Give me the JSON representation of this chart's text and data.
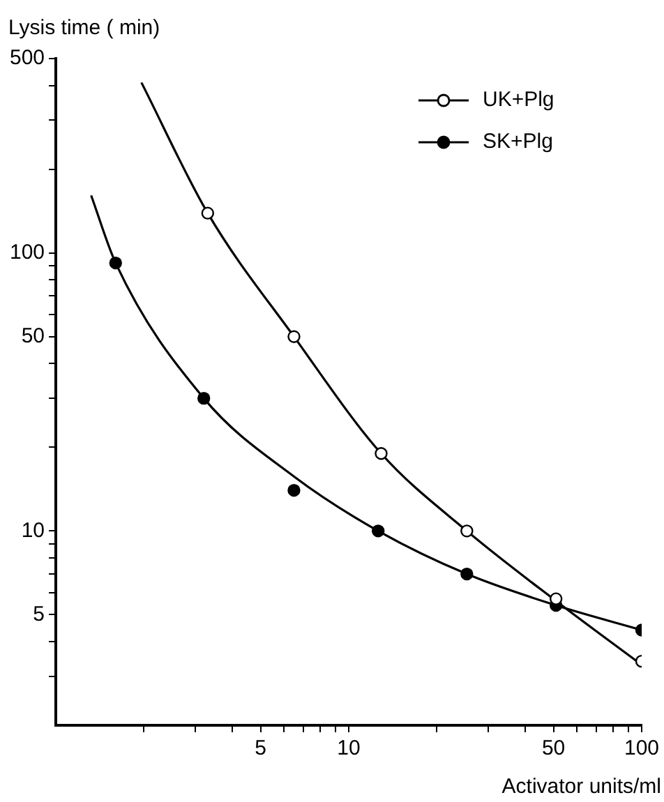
{
  "chart_data": {
    "type": "scatter",
    "ylabel": "Lysis time ( min)",
    "xlabel": "Activator units/ml",
    "log": "xy",
    "grid": false,
    "legend": "top right",
    "marker": "circle",
    "xlim": [
      1,
      100
    ],
    "ylim": [
      2,
      500
    ],
    "xticks": [
      {
        "value": 2,
        "label": null
      },
      {
        "value": 3,
        "label": null
      },
      {
        "value": 4,
        "label": null
      },
      5,
      {
        "value": 6,
        "label": null
      },
      {
        "value": 7,
        "label": null
      },
      {
        "value": 8,
        "label": null
      },
      {
        "value": 9,
        "label": null
      },
      10,
      {
        "value": 20,
        "label": null
      },
      {
        "value": 30,
        "label": null
      },
      {
        "value": 40,
        "label": null
      },
      50,
      {
        "value": 60,
        "label": null
      },
      {
        "value": 70,
        "label": null
      },
      {
        "value": 80,
        "label": null
      },
      {
        "value": 90,
        "label": null
      },
      100
    ],
    "yticks": [
      {
        "value": 3,
        "label": null
      },
      {
        "value": 4,
        "label": null
      },
      5,
      {
        "value": 6,
        "label": null
      },
      {
        "value": 7,
        "label": null
      },
      {
        "value": 8,
        "label": null
      },
      {
        "value": 9,
        "label": null
      },
      10,
      {
        "value": 20,
        "label": null
      },
      {
        "value": 30,
        "label": null
      },
      {
        "value": 40,
        "label": null
      },
      50,
      {
        "value": 60,
        "label": null
      },
      {
        "value": 70,
        "label": null
      },
      {
        "value": 80,
        "label": null
      },
      {
        "value": 90,
        "label": null
      },
      100,
      {
        "value": 200,
        "label": null
      },
      {
        "value": 300,
        "label": null
      },
      {
        "value": 400,
        "label": null
      },
      500
    ],
    "series": [
      {
        "name": "UK+Plg",
        "color": "#ffffff",
        "x": [
          3.3,
          6.5,
          12.9,
          25.3,
          51,
          100
        ],
        "values": [
          139,
          50,
          19,
          10,
          5.7,
          3.4
        ]
      },
      {
        "name": "SK+Plg",
        "color": "#000000",
        "x": [
          1.6,
          3.2,
          6.5,
          12.6,
          25.3,
          51,
          100
        ],
        "values": [
          92,
          30,
          14,
          10,
          7,
          5.4,
          4.4
        ]
      },
      {
        "type": "line",
        "color": "#000000",
        "marker": "none",
        "x": [
          1.96,
          3.3,
          6.5,
          12.9,
          25.3,
          51,
          100
        ],
        "values": [
          410,
          139,
          50,
          19,
          10,
          5.6,
          3.3
        ]
      },
      {
        "type": "line",
        "color": "#000000",
        "marker": "none",
        "x": [
          1.32,
          1.6,
          3.2,
          6.5,
          12.6,
          25.3,
          51,
          100
        ],
        "values": [
          161,
          92,
          30,
          15.7,
          10,
          7,
          5.4,
          4.4
        ]
      }
    ]
  }
}
